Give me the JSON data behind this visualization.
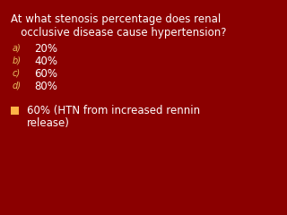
{
  "background_color": "#8B0000",
  "question_line1": "At what stenosis percentage does renal",
  "question_line2": "   occlusive disease cause hypertension?",
  "options": [
    {
      "label": "a)",
      "text": "20%"
    },
    {
      "label": "b)",
      "text": "40%"
    },
    {
      "label": "c)",
      "text": "60%"
    },
    {
      "label": "d)",
      "text": "80%"
    }
  ],
  "answer_bullet_color": "#FFB347",
  "answer_text_line1": "60% (HTN from increased rennin",
  "answer_text_line2": "release)",
  "text_color": "#FFFFFF",
  "label_color": "#E8C060",
  "question_fontsize": 8.5,
  "option_label_fontsize": 7.0,
  "option_text_fontsize": 8.5,
  "answer_fontsize": 8.5
}
